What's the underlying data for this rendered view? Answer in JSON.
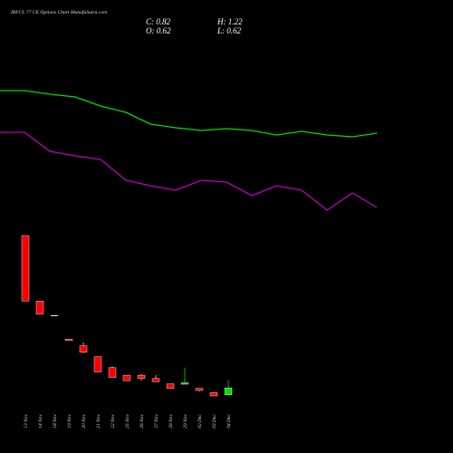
{
  "chart_data": {
    "type": "candlestick",
    "title": "IRFCL 77 CE Options Chart MunafaSutra.com",
    "ohlc_readout": {
      "close": "C: 0.82",
      "high": "H: 1.22",
      "open": "O: 0.62",
      "low": "L: 0.62"
    },
    "categories": [
      "13 Nov",
      "14 Nov",
      "18 Nov",
      "19 Nov",
      "20 Nov",
      "21 Nov",
      "22 Nov",
      "25 Nov",
      "26 Nov",
      "27 Nov",
      "28 Nov",
      "29 Nov",
      "02 Dec",
      "03 Dec",
      "04 Dec"
    ],
    "candles": [
      {
        "date": "13 Nov",
        "open": 7.6,
        "high": 7.6,
        "low": 4.6,
        "close": 4.6
      },
      {
        "date": "14 Nov",
        "open": 4.6,
        "high": 4.6,
        "low": 4.0,
        "close": 4.0
      },
      {
        "date": "18 Nov",
        "open": 3.95,
        "high": 3.95,
        "low": 3.95,
        "close": 3.95
      },
      {
        "date": "19 Nov",
        "open": 2.85,
        "high": 2.85,
        "low": 2.8,
        "close": 2.8
      },
      {
        "date": "20 Nov",
        "open": 2.55,
        "high": 2.7,
        "low": 2.2,
        "close": 2.25
      },
      {
        "date": "21 Nov",
        "open": 2.05,
        "high": 2.05,
        "low": 1.35,
        "close": 1.35
      },
      {
        "date": "22 Nov",
        "open": 1.55,
        "high": 1.6,
        "low": 1.1,
        "close": 1.1
      },
      {
        "date": "25 Nov",
        "open": 1.2,
        "high": 1.2,
        "low": 0.95,
        "close": 0.95
      },
      {
        "date": "26 Nov",
        "open": 1.2,
        "high": 1.25,
        "low": 0.95,
        "close": 1.05
      },
      {
        "date": "27 Nov",
        "open": 1.05,
        "high": 1.2,
        "low": 0.9,
        "close": 0.9
      },
      {
        "date": "28 Nov",
        "open": 0.8,
        "high": 0.8,
        "low": 0.6,
        "close": 0.6
      },
      {
        "date": "29 Nov",
        "open": 0.8,
        "high": 1.55,
        "low": 0.8,
        "close": 0.85
      },
      {
        "date": "02 Dec",
        "open": 0.6,
        "high": 0.6,
        "low": 0.45,
        "close": 0.5
      },
      {
        "date": "03 Dec",
        "open": 0.4,
        "high": 0.42,
        "low": 0.25,
        "close": 0.25
      },
      {
        "date": "04 Dec",
        "open": 0.3,
        "high": 0.98,
        "low": 0.3,
        "close": 0.62
      }
    ],
    "moving_averages": [
      {
        "color": "#00dd00",
        "values": [
          100,
          100,
          104,
          107,
          117,
          124,
          137,
          141,
          144,
          142,
          144,
          149,
          145,
          149,
          151,
          147
        ]
      },
      {
        "color": "#bb00bb",
        "values": [
          146,
          146,
          167,
          172,
          176,
          199,
          205,
          210,
          199,
          201,
          216,
          205,
          210,
          232,
          213,
          229
        ]
      }
    ],
    "ma_x_anchor": [
      0,
      27,
      55,
      83,
      111,
      139,
      166,
      194,
      222,
      250,
      278,
      305,
      333,
      361,
      389,
      416
    ],
    "grid": false,
    "colors": {
      "up": "#00dd00",
      "down": "#ff0000",
      "doji": "#ffffff",
      "background": "#000000"
    }
  }
}
